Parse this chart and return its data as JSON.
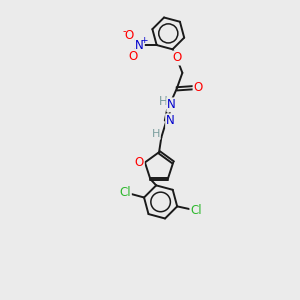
{
  "background_color": "#ebebeb",
  "bond_color": "#1a1a1a",
  "atom_colors": {
    "O": "#ff0000",
    "N": "#0000cd",
    "Cl": "#2db82d",
    "H": "#7a9e9e"
  },
  "figsize": [
    3.0,
    3.0
  ],
  "dpi": 100,
  "xlim": [
    0,
    10
  ],
  "ylim": [
    0,
    13
  ],
  "lw": 1.4,
  "fs": 8.5
}
